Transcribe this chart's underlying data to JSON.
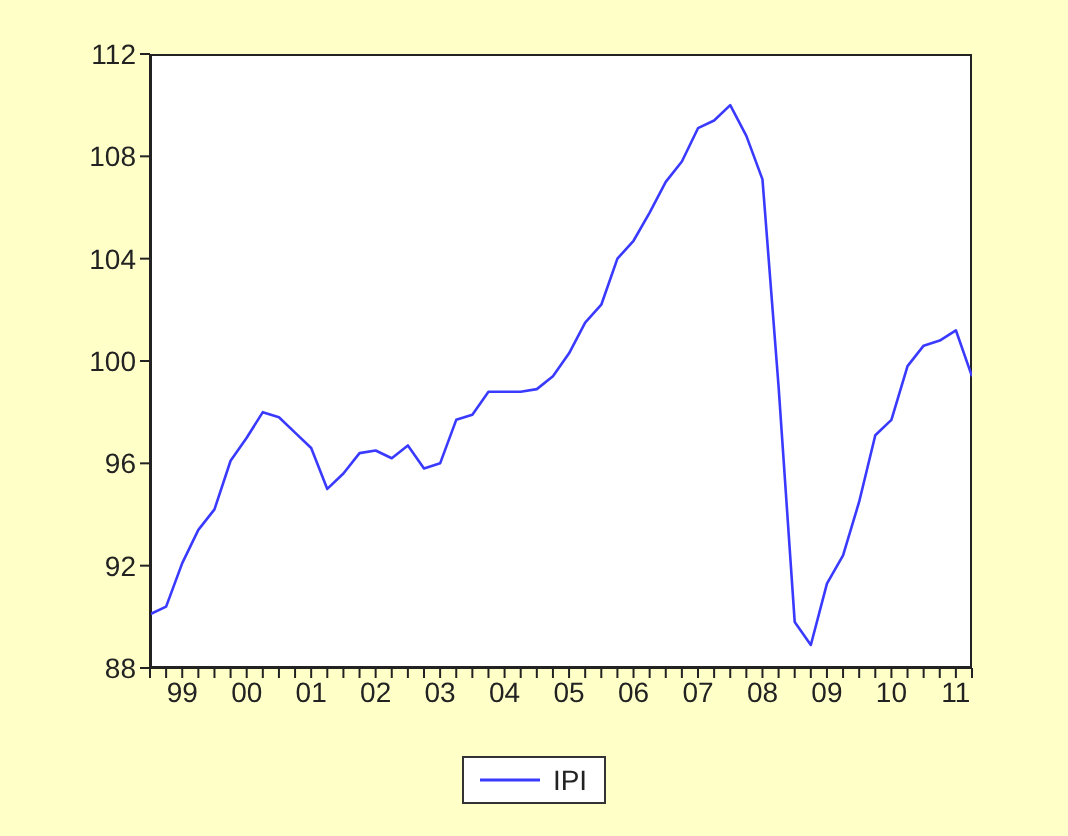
{
  "chart_data": {
    "type": "line",
    "categories": [
      null,
      null,
      "99",
      null,
      null,
      null,
      "00",
      null,
      null,
      null,
      "01",
      null,
      null,
      null,
      "02",
      null,
      null,
      null,
      "03",
      null,
      null,
      null,
      "04",
      null,
      null,
      null,
      "05",
      null,
      null,
      null,
      "06",
      null,
      null,
      null,
      "07",
      null,
      null,
      null,
      "08",
      null,
      null,
      null,
      "09",
      null,
      null,
      null,
      "10",
      null,
      null,
      null,
      "11",
      null
    ],
    "series": [
      {
        "name": "IPI",
        "color": "#3a3aff",
        "values": [
          90.1,
          90.4,
          92.1,
          93.4,
          94.2,
          96.1,
          97.0,
          98.0,
          97.8,
          97.2,
          96.6,
          95.0,
          95.6,
          96.4,
          96.5,
          96.2,
          96.7,
          95.8,
          96.0,
          97.7,
          97.9,
          98.8,
          98.8,
          98.8,
          98.9,
          99.4,
          100.3,
          101.5,
          102.2,
          104.0,
          104.7,
          105.8,
          107.0,
          107.8,
          109.1,
          109.4,
          110.0,
          108.8,
          107.1,
          99.0,
          89.8,
          88.9,
          91.3,
          92.4,
          94.5,
          97.1,
          97.7,
          99.8,
          100.6,
          100.8,
          101.2,
          99.4
        ]
      }
    ],
    "ylim": [
      88,
      112
    ],
    "yticks": [
      88,
      92,
      96,
      100,
      104,
      108,
      112
    ],
    "legend": "bottom",
    "marker": "none",
    "line_style": "solid"
  }
}
